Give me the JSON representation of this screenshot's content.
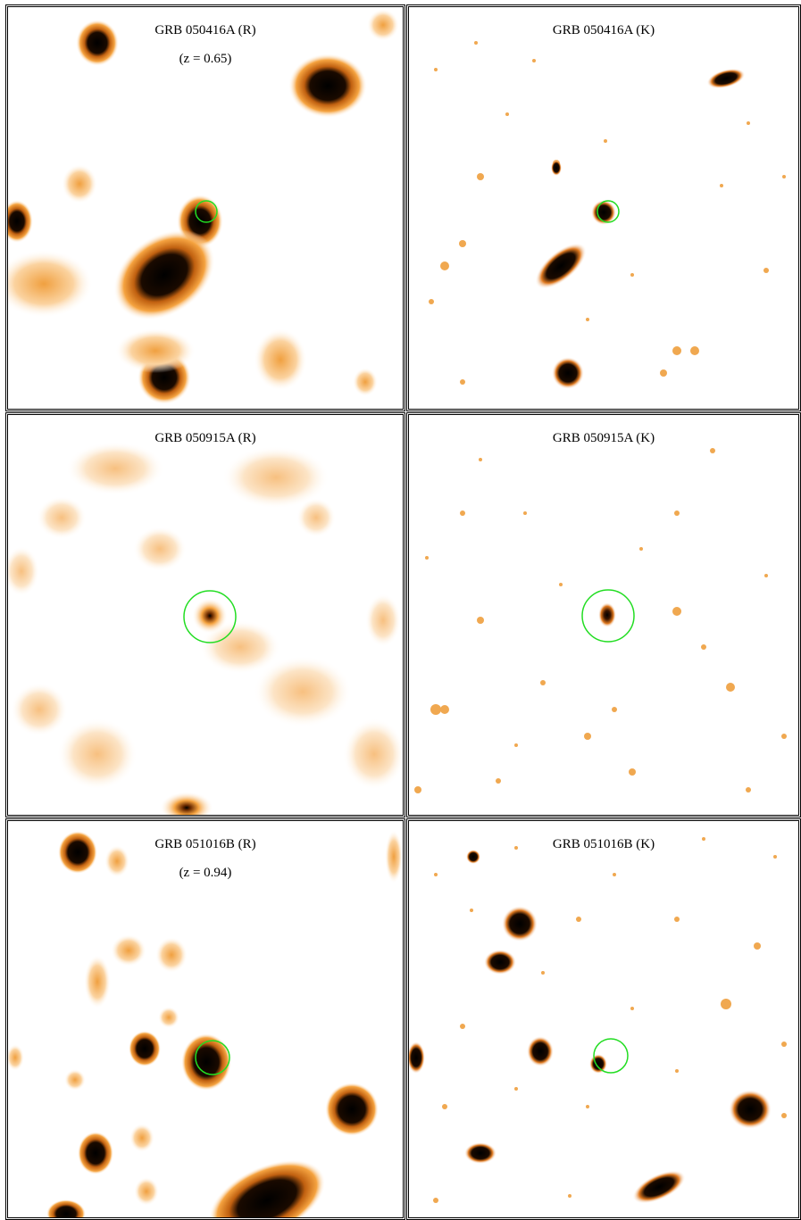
{
  "panels": [
    {
      "title": "GRB 050416A (R)",
      "redshift": "(z = 0.65)"
    },
    {
      "title": "GRB 050416A (K)",
      "redshift": ""
    },
    {
      "title": "GRB 050915A (R)",
      "redshift": ""
    },
    {
      "title": "GRB 050915A (K)",
      "redshift": ""
    },
    {
      "title": "GRB 051016B (R)",
      "redshift": "(z = 0.94)"
    },
    {
      "title": "GRB 051016B (K)",
      "redshift": ""
    }
  ],
  "colors": {
    "source": "#000000",
    "halo": "#f5a340",
    "faint": "#fbd9a8",
    "marker": "#22dd22",
    "background": "#ffffff"
  }
}
